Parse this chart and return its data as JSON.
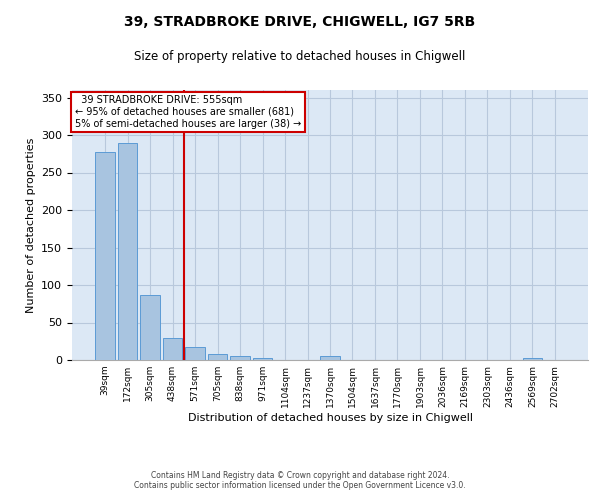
{
  "title": "39, STRADBROKE DRIVE, CHIGWELL, IG7 5RB",
  "subtitle": "Size of property relative to detached houses in Chigwell",
  "xlabel": "Distribution of detached houses by size in Chigwell",
  "ylabel": "Number of detached properties",
  "footer_line1": "Contains HM Land Registry data © Crown copyright and database right 2024.",
  "footer_line2": "Contains public sector information licensed under the Open Government Licence v3.0.",
  "bar_labels": [
    "39sqm",
    "172sqm",
    "305sqm",
    "438sqm",
    "571sqm",
    "705sqm",
    "838sqm",
    "971sqm",
    "1104sqm",
    "1237sqm",
    "1370sqm",
    "1504sqm",
    "1637sqm",
    "1770sqm",
    "1903sqm",
    "2036sqm",
    "2169sqm",
    "2303sqm",
    "2436sqm",
    "2569sqm",
    "2702sqm"
  ],
  "bar_values": [
    278,
    290,
    87,
    30,
    17,
    8,
    6,
    3,
    0,
    0,
    5,
    0,
    0,
    0,
    0,
    0,
    0,
    0,
    0,
    3,
    0
  ],
  "bar_color": "#a8c4e0",
  "bar_edge_color": "#5b9bd5",
  "property_label": "39 STRADBROKE DRIVE: 555sqm",
  "pct_smaller": 95,
  "count_smaller": 681,
  "pct_larger": 5,
  "count_larger": 38,
  "vline_x_index": 3.5,
  "annotation_box_color": "#cc0000",
  "background_color": "#dce8f5",
  "grid_color": "#b8c8dc",
  "ylim": [
    0,
    360
  ],
  "yticks": [
    0,
    50,
    100,
    150,
    200,
    250,
    300,
    350
  ]
}
